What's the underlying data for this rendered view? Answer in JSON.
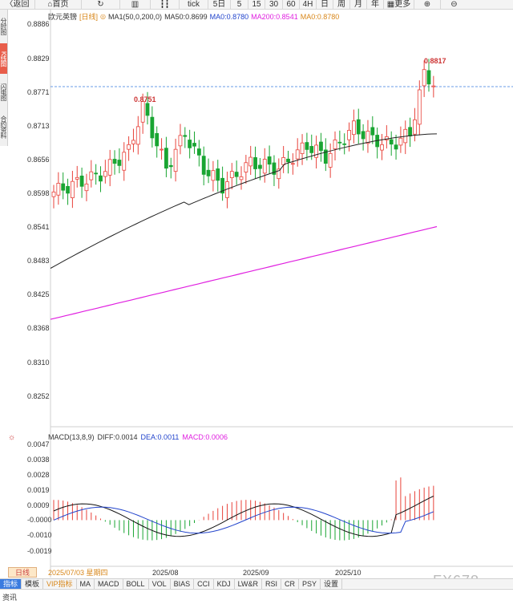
{
  "toolbar": {
    "items": [
      "返回",
      "首页",
      "",
      "",
      "",
      "tick",
      "5日",
      "5",
      "15",
      "30",
      "60",
      "4H",
      "日",
      "周",
      "月",
      "年",
      "更多",
      "",
      ""
    ],
    "back": "返回",
    "home": "首页",
    "tick": "tick",
    "d5": "5日",
    "m5": "5",
    "m15": "15",
    "m30": "30",
    "m60": "60",
    "h4": "4H",
    "day": "日",
    "week": "周",
    "month": "月",
    "year": "年",
    "more": "更多"
  },
  "left_tabs": [
    "分时图",
    "K线图",
    "闪电图",
    "合约资料"
  ],
  "legend": {
    "symbol": "欧元英镑",
    "period": "[日线]",
    "ma1": "MA1(50,0,200,0)",
    "ma50": "MA50:0.8699",
    "ma0a": "MA0:0.8780",
    "ma200": "MA200:0.8541",
    "ma0b": "MA0:0.8780"
  },
  "price_axis": [
    "0.8886",
    "0.8829",
    "0.8771",
    "0.8713",
    "0.8656",
    "0.8598",
    "0.8541",
    "0.8483",
    "0.8425",
    "0.8368",
    "0.8310",
    "0.8252"
  ],
  "high_labels": {
    "first": "0.8751",
    "second": "0.8817"
  },
  "macd_legend": {
    "title": "MACD(13,8,9)",
    "diff": "DIFF:0.0014",
    "dea": "DEA:0.0011",
    "macd": "MACD:0.0006"
  },
  "macd_axis": [
    "0.0047",
    "0.0038",
    "0.0028",
    "0.0019",
    "0.0009",
    "-0.0000",
    "-0.0010",
    "-0.0019"
  ],
  "date_box": {
    "label": "日线",
    "date": "2025/07/03 星期四"
  },
  "x_axis": [
    "2025/08",
    "2025/09",
    "2025/10"
  ],
  "bottom_tabs": [
    "指标",
    "模板",
    "VIP指标",
    "MA",
    "MACD",
    "BOLL",
    "VOL",
    "BIAS",
    "CCI",
    "KDJ",
    "LW&R",
    "RSI",
    "CR",
    "PSY",
    "设置"
  ],
  "status_text": "资讯",
  "watermark": "FX678",
  "colors": {
    "up": "#e8423a",
    "down": "#19a532",
    "ma50": "#222222",
    "ma200": "#e020e0",
    "diff": "#111111",
    "dea": "#2244cc",
    "accent": "#e85d4a"
  },
  "chart_data": {
    "type": "candlestick",
    "title": "欧元英镑 [日线]",
    "ylim": [
      0.8252,
      0.8886
    ],
    "ma50_last": 0.8699,
    "ma200_last": 0.8541,
    "highs_marked": [
      0.8751,
      0.8817
    ],
    "macd": {
      "diff": 0.0014,
      "dea": 0.0011,
      "macd": 0.0006,
      "ylim": [
        -0.0019,
        0.0047
      ]
    }
  }
}
